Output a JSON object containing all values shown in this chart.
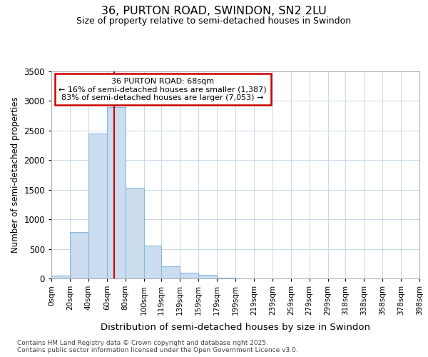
{
  "title_line1": "36, PURTON ROAD, SWINDON, SN2 2LU",
  "title_line2": "Size of property relative to semi-detached houses in Swindon",
  "xlabel": "Distribution of semi-detached houses by size in Swindon",
  "ylabel": "Number of semi-detached properties",
  "property_address": "36 PURTON ROAD: 68sqm",
  "pct_smaller": "16% of semi-detached houses are smaller (1,387)",
  "pct_larger": "83% of semi-detached houses are larger (7,053)",
  "property_size": 68,
  "bin_edges": [
    0,
    20,
    40,
    60,
    80,
    100,
    119,
    139,
    159,
    179,
    199,
    219,
    239,
    259,
    279,
    299,
    318,
    338,
    358,
    378,
    398
  ],
  "bin_labels": [
    "0sqm",
    "20sqm",
    "40sqm",
    "60sqm",
    "80sqm",
    "100sqm",
    "119sqm",
    "139sqm",
    "159sqm",
    "179sqm",
    "199sqm",
    "219sqm",
    "239sqm",
    "259sqm",
    "279sqm",
    "299sqm",
    "318sqm",
    "338sqm",
    "358sqm",
    "378sqm",
    "398sqm"
  ],
  "bar_heights": [
    50,
    780,
    2450,
    2900,
    1530,
    560,
    210,
    95,
    55,
    15,
    0,
    0,
    0,
    0,
    0,
    0,
    0,
    0,
    0,
    0
  ],
  "bar_color": "#ccddf0",
  "bar_edge_color": "#88b8e0",
  "red_line_color": "#cc0000",
  "annotation_box_edge_color": "#cc0000",
  "grid_color": "#c8d8ec",
  "background_color": "#ffffff",
  "ylim": [
    0,
    3500
  ],
  "yticks": [
    0,
    500,
    1000,
    1500,
    2000,
    2500,
    3000,
    3500
  ],
  "footnote": "Contains HM Land Registry data © Crown copyright and database right 2025.\nContains public sector information licensed under the Open Government Licence v3.0."
}
